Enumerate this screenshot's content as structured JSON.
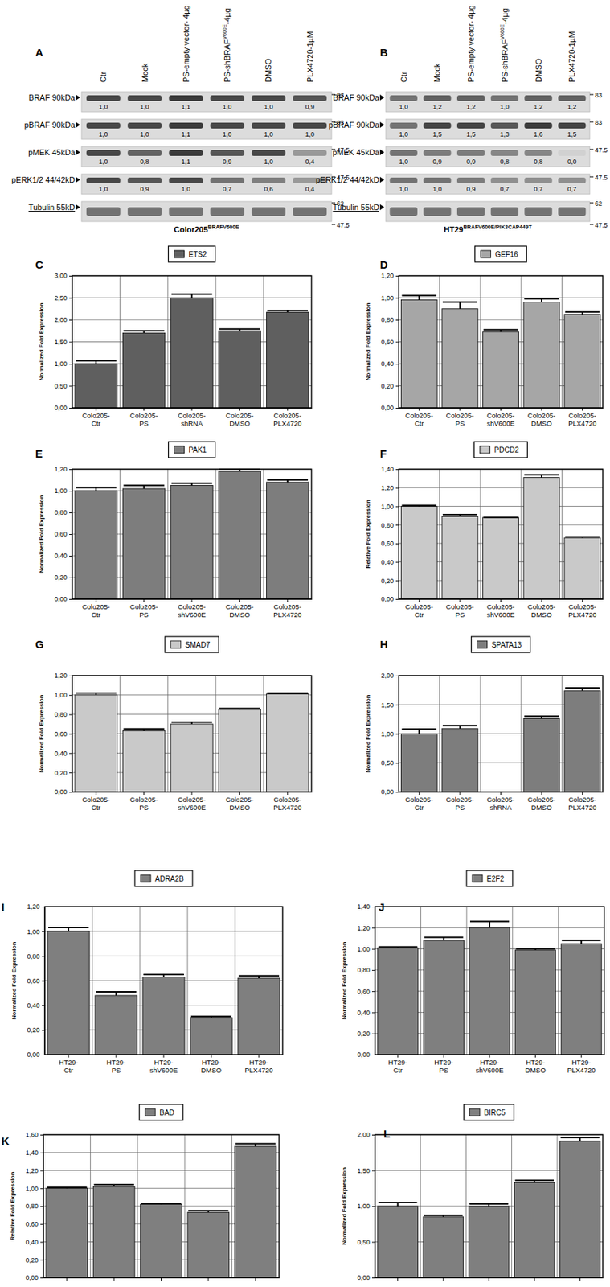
{
  "chart_data": [
    {
      "type": "western_blot",
      "panel_label": "A",
      "title": "Color205",
      "title_superscript": "BRAFV600E",
      "lanes": [
        {
          "text": "Ctr"
        },
        {
          "text": "Mock"
        },
        {
          "text": "PS-empty vector- 4µg"
        },
        {
          "text": "PS-shBRAF",
          "sup": "V600E",
          "suffix": "-4µg"
        },
        {
          "text": "DMSO"
        },
        {
          "text": "PLX4720-1µM"
        }
      ],
      "rows": [
        {
          "name": "BRAF 90kDa",
          "values": [
            1.0,
            1.0,
            1.1,
            1.0,
            1.0,
            0.9
          ],
          "value_labels": [
            "1,0",
            "1,0",
            "1,1",
            "1,0",
            "1,0",
            "0,9"
          ],
          "markers": [
            83
          ]
        },
        {
          "name": "pBRAF 90kDa",
          "values": [
            1.0,
            1.0,
            1.1,
            1.0,
            1.0,
            1.0
          ],
          "value_labels": [
            "1,0",
            "1,0",
            "1,1",
            "1,0",
            "1,0",
            "1,0"
          ],
          "markers": [
            83
          ]
        },
        {
          "name": "pMEK 45kDa",
          "values": [
            1.0,
            0.8,
            1.1,
            0.9,
            1.0,
            0.4
          ],
          "value_labels": [
            "1,0",
            "0,8",
            "1,1",
            "0,9",
            "1,0",
            "0,4"
          ],
          "markers": [
            47.5
          ]
        },
        {
          "name": "pERK1/2 44/42kD",
          "values": [
            1.0,
            0.9,
            1.0,
            0.7,
            0.6,
            0.4
          ],
          "value_labels": [
            "1,0",
            "0,9",
            "1,0",
            "0,7",
            "0,6",
            "0,4"
          ],
          "markers": [
            47.5
          ]
        },
        {
          "name": "Tubulin 55kD",
          "markers": [
            62,
            47.5
          ]
        }
      ]
    },
    {
      "type": "western_blot",
      "panel_label": "B",
      "title": "HT29",
      "title_superscript": "BRAFV600E/PIK3CAP449T",
      "lanes": [
        {
          "text": "Ctr"
        },
        {
          "text": "Mock"
        },
        {
          "text": "PS-empty vector- 4µg"
        },
        {
          "text": "PS-shBRAF",
          "sup": "V600E",
          "suffix": "-4µg"
        },
        {
          "text": "DMSO"
        },
        {
          "text": "PLX4720-1µM"
        }
      ],
      "rows": [
        {
          "name": "BRAF 90kDa",
          "values": [
            1.0,
            1.2,
            1.2,
            1.0,
            1.2,
            1.2
          ],
          "value_labels": [
            "1,0",
            "1,2",
            "1,2",
            "1,0",
            "1,2",
            "1,2"
          ],
          "markers": [
            83
          ]
        },
        {
          "name": "pBRAF 90kDa",
          "values": [
            1.0,
            1.5,
            1.5,
            1.3,
            1.6,
            1.5
          ],
          "value_labels": [
            "1,0",
            "1,5",
            "1,5",
            "1,3",
            "1,6",
            "1,5"
          ],
          "markers": [
            83
          ]
        },
        {
          "name": "pMEK 45kDa",
          "values": [
            1.0,
            0.9,
            0.9,
            0.8,
            0.8,
            0.0
          ],
          "value_labels": [
            "1,0",
            "0,9",
            "0,9",
            "0,8",
            "0,8",
            "0,0"
          ],
          "markers": [
            47.5
          ]
        },
        {
          "name": "pERK1/2 44/42kD",
          "values": [
            1.0,
            1.0,
            0.9,
            0.7,
            0.7,
            0.7
          ],
          "value_labels": [
            "1,0",
            "1,0",
            "0,9",
            "0,7",
            "0,7",
            "0,7"
          ],
          "markers": [
            47.5
          ]
        },
        {
          "name": "Tubulin 55kD",
          "markers": [
            62,
            47.5
          ]
        }
      ]
    },
    {
      "type": "bar",
      "panel_label": "C",
      "y_label": "Normalized Fold Expression",
      "legend": "top",
      "grid": true,
      "categories": [
        "Colo205-Ctr",
        "Colo205-PS",
        "Colo205-shRNA",
        "Colo205-DMSO",
        "Colo205-PLX4720"
      ],
      "series": [
        {
          "name": "ETS2",
          "color": "#5f5f5f",
          "values": [
            1.0,
            1.7,
            2.5,
            1.75,
            2.17
          ],
          "errors": [
            0.07,
            0.05,
            0.08,
            0.04,
            0.04
          ]
        }
      ],
      "ylim": [
        0,
        3
      ],
      "yticks": [
        {
          "value": 0,
          "label": "0,00"
        },
        {
          "value": 0.5,
          "label": "0,50"
        },
        {
          "value": 1,
          "label": "1,00"
        },
        {
          "value": 1.5,
          "label": "1,50"
        },
        {
          "value": 2,
          "label": "2,00"
        },
        {
          "value": 2.5,
          "label": "2,50"
        },
        {
          "value": 3,
          "label": "3,00"
        }
      ]
    },
    {
      "type": "bar",
      "panel_label": "D",
      "y_label": "Normalized Fold Expression",
      "legend": "top",
      "grid": true,
      "categories": [
        "Colo205-Ctr",
        "Colo205-PS",
        "Colo205-shV600E",
        "Colo205-DMSO",
        "Colo205-PLX4720"
      ],
      "series": [
        {
          "name": "GEF16",
          "color": "#a6a6a6",
          "values": [
            0.98,
            0.9,
            0.69,
            0.96,
            0.85
          ],
          "errors": [
            0.04,
            0.06,
            0.02,
            0.03,
            0.02
          ]
        }
      ],
      "ylim": [
        0,
        1.2
      ],
      "yticks": [
        {
          "value": 0,
          "label": "0,00"
        },
        {
          "value": 0.2,
          "label": "0,20"
        },
        {
          "value": 0.4,
          "label": "0,40"
        },
        {
          "value": 0.6,
          "label": "0,60"
        },
        {
          "value": 0.8,
          "label": "0,80"
        },
        {
          "value": 1,
          "label": "1,00"
        },
        {
          "value": 1.2,
          "label": "1,20"
        }
      ]
    },
    {
      "type": "bar",
      "panel_label": "E",
      "y_label": "Normalized Fold Expression",
      "legend": "top",
      "grid": true,
      "categories": [
        "Colo205-Ctr",
        "Colo205-PS",
        "Colo205-shV600E",
        "Colo205-DMSO",
        "Colo205-PLX4720"
      ],
      "series": [
        {
          "name": "PAK1",
          "color": "#7d7d7d",
          "values": [
            1.0,
            1.02,
            1.05,
            1.18,
            1.08
          ],
          "errors": [
            0.03,
            0.03,
            0.02,
            0.02,
            0.02
          ]
        }
      ],
      "ylim": [
        0,
        1.2
      ],
      "yticks": [
        {
          "value": 0,
          "label": "0,00"
        },
        {
          "value": 0.2,
          "label": "0,20"
        },
        {
          "value": 0.4,
          "label": "0,40"
        },
        {
          "value": 0.6,
          "label": "0,60"
        },
        {
          "value": 0.8,
          "label": "0,80"
        },
        {
          "value": 1,
          "label": "1,00"
        },
        {
          "value": 1.2,
          "label": "1,20"
        }
      ]
    },
    {
      "type": "bar",
      "panel_label": "F",
      "y_label": "Relative Fold Expression",
      "legend": "top",
      "grid": true,
      "categories": [
        "Colo205-Ctr",
        "Colo205-PS",
        "Colo205-shV600E",
        "Colo205-DMSO",
        "Colo205-PLX4720"
      ],
      "series": [
        {
          "name": "PDCD2",
          "color": "#c9c9c9",
          "values": [
            1.0,
            0.89,
            0.88,
            1.31,
            0.66
          ],
          "errors": [
            0.01,
            0.02,
            0,
            0.03,
            0.01
          ]
        }
      ],
      "ylim": [
        0,
        1.4
      ],
      "yticks": [
        {
          "value": 0,
          "label": "0,00"
        },
        {
          "value": 0.2,
          "label": "0,20"
        },
        {
          "value": 0.4,
          "label": "0,40"
        },
        {
          "value": 0.6,
          "label": "0,60"
        },
        {
          "value": 0.8,
          "label": "0,80"
        },
        {
          "value": 1,
          "label": "1,00"
        },
        {
          "value": 1.2,
          "label": "1,20"
        },
        {
          "value": 1.4,
          "label": "1,40"
        }
      ]
    },
    {
      "type": "bar",
      "panel_label": "G",
      "y_label": "Normalized Fold Expression",
      "legend": "top",
      "grid": true,
      "categories": [
        "Colo205-Ctr",
        "Colo205-PS",
        "Colo205-shV600E",
        "Colo205-DMSO",
        "Colo205-PLX4720"
      ],
      "series": [
        {
          "name": "SMAD7",
          "color": "#c9c9c9",
          "values": [
            1.0,
            0.63,
            0.7,
            0.85,
            1.01
          ],
          "errors": [
            0.02,
            0.02,
            0.02,
            0.01,
            0.01
          ]
        }
      ],
      "ylim": [
        0,
        1.2
      ],
      "yticks": [
        {
          "value": 0,
          "label": "0,00"
        },
        {
          "value": 0.2,
          "label": "0,20"
        },
        {
          "value": 0.4,
          "label": "0,40"
        },
        {
          "value": 0.6,
          "label": "0,60"
        },
        {
          "value": 0.8,
          "label": "0,80"
        },
        {
          "value": 1,
          "label": "1,00"
        },
        {
          "value": 1.2,
          "label": "1,20"
        }
      ]
    },
    {
      "type": "bar",
      "panel_label": "H",
      "y_label": "Normalized Fold Expression",
      "legend": "top",
      "grid": true,
      "categories": [
        "Colo205-Ctr",
        "Colo205-PS",
        "Colo205-shRNA",
        "Colo205-DMSO",
        "Colo205-PLX4720"
      ],
      "series": [
        {
          "name": "SPATA13",
          "color": "#7d7d7d",
          "values": [
            1.0,
            1.09,
            null,
            1.26,
            1.74
          ],
          "errors": [
            0.08,
            0.05,
            null,
            0.04,
            0.05
          ]
        }
      ],
      "ylim": [
        0,
        2
      ],
      "yticks": [
        {
          "value": 0,
          "label": "0,00"
        },
        {
          "value": 0.5,
          "label": "0,50"
        },
        {
          "value": 1,
          "label": "1,00"
        },
        {
          "value": 1.5,
          "label": "1,50"
        },
        {
          "value": 2,
          "label": "2,00"
        }
      ]
    },
    {
      "type": "bar",
      "panel_label": "I",
      "y_label": "Normalized Fold Expression",
      "legend": "top",
      "grid": true,
      "categories": [
        "HT29-Ctr",
        "HT29-PS",
        "HT29-shV600E",
        "HT29-DMSO",
        "HT29-PLX4720"
      ],
      "series": [
        {
          "name": "ADRA2B",
          "color": "#7f7f7f",
          "values": [
            1.0,
            0.48,
            0.63,
            0.3,
            0.62
          ],
          "errors": [
            0.03,
            0.03,
            0.02,
            0.01,
            0.02
          ]
        }
      ],
      "ylim": [
        0,
        1.2
      ],
      "yticks": [
        {
          "value": 0,
          "label": "0,00"
        },
        {
          "value": 0.2,
          "label": "0,20"
        },
        {
          "value": 0.4,
          "label": "0,40"
        },
        {
          "value": 0.6,
          "label": "0,60"
        },
        {
          "value": 0.8,
          "label": "0,80"
        },
        {
          "value": 1,
          "label": "1,00"
        },
        {
          "value": 1.2,
          "label": "1,20"
        }
      ]
    },
    {
      "type": "bar",
      "panel_label": "J",
      "y_label": "Normalized Fold Expression",
      "legend": "top",
      "grid": true,
      "categories": [
        "HT29-Ctr",
        "HT29-PS",
        "HT29-shV600E",
        "HT29-DMSO",
        "HT29-PLX4720"
      ],
      "series": [
        {
          "name": "E2F2",
          "color": "#7f7f7f",
          "values": [
            1.01,
            1.08,
            1.2,
            0.99,
            1.05
          ],
          "errors": [
            0.01,
            0.03,
            0.06,
            0.01,
            0.03
          ]
        }
      ],
      "ylim": [
        0,
        1.4
      ],
      "yticks": [
        {
          "value": 0,
          "label": "0,00"
        },
        {
          "value": 0.2,
          "label": "0,20"
        },
        {
          "value": 0.4,
          "label": "0,40"
        },
        {
          "value": 0.6,
          "label": "0,60"
        },
        {
          "value": 0.8,
          "label": "0,80"
        },
        {
          "value": 1,
          "label": "1,00"
        },
        {
          "value": 1.2,
          "label": "1,20"
        },
        {
          "value": 1.4,
          "label": "1,40"
        }
      ]
    },
    {
      "type": "bar",
      "panel_label": "K",
      "y_label": "Relative Fold Expression",
      "legend": "top",
      "grid": true,
      "categories": [
        null,
        null,
        null,
        null,
        null
      ],
      "series": [
        {
          "name": "BAD",
          "color": "#7f7f7f",
          "values": [
            1.0,
            1.02,
            0.82,
            0.73,
            1.47
          ],
          "errors": [
            0.01,
            0.02,
            0.01,
            0.02,
            0.03
          ]
        }
      ],
      "ylim": [
        0,
        1.6
      ],
      "yticks": [
        {
          "value": 0,
          "label": "0,00"
        },
        {
          "value": 0.2,
          "label": "0,20"
        },
        {
          "value": 0.4,
          "label": "0,40"
        },
        {
          "value": 0.6,
          "label": "0,60"
        },
        {
          "value": 0.8,
          "label": "0,80"
        },
        {
          "value": 1,
          "label": "1,00"
        },
        {
          "value": 1.2,
          "label": "1,20"
        },
        {
          "value": 1.4,
          "label": "1,40"
        },
        {
          "value": 1.6,
          "label": "1,60"
        }
      ]
    },
    {
      "type": "bar",
      "panel_label": "L",
      "y_label": "Normalized Fold Expression",
      "legend": "top",
      "grid": true,
      "categories": [
        null,
        null,
        null,
        null,
        null
      ],
      "series": [
        {
          "name": "BIRC5",
          "color": "#7f7f7f",
          "values": [
            1.0,
            0.85,
            1.0,
            1.33,
            1.91
          ],
          "errors": [
            0.05,
            0.02,
            0.03,
            0.03,
            0.05
          ]
        }
      ],
      "ylim": [
        0,
        2
      ],
      "yticks": [
        {
          "value": 0,
          "label": "0,00"
        },
        {
          "value": 0.5,
          "label": "0,50"
        },
        {
          "value": 1,
          "label": "1,00"
        },
        {
          "value": 1.5,
          "label": "1,50"
        },
        {
          "value": 2,
          "label": "2,00"
        }
      ]
    }
  ]
}
